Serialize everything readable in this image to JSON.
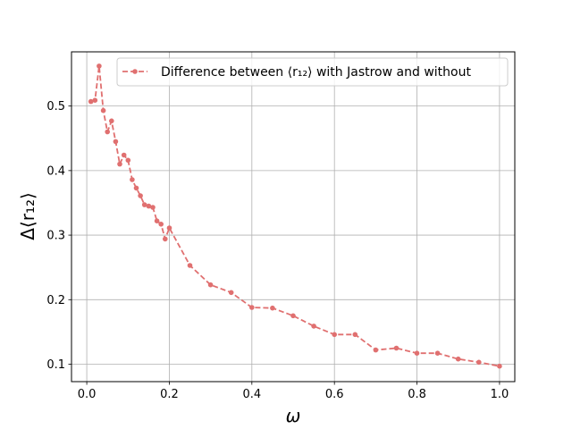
{
  "chart_data": {
    "type": "line",
    "xlabel": "ω",
    "ylabel": "Δ⟨r₁₂⟩",
    "xlim": [
      -0.037,
      1.037
    ],
    "ylim": [
      0.073,
      0.584
    ],
    "x_ticks": [
      0.0,
      0.2,
      0.4,
      0.6,
      0.8,
      1.0
    ],
    "x_tick_labels": [
      "0.0",
      "0.2",
      "0.4",
      "0.6",
      "0.8",
      "1.0"
    ],
    "y_ticks": [
      0.1,
      0.2,
      0.3,
      0.4,
      0.5
    ],
    "y_tick_labels": [
      "0.1",
      "0.2",
      "0.3",
      "0.4",
      "0.5"
    ],
    "grid": true,
    "legend_position": "top-right",
    "series": [
      {
        "name": "Difference between ⟨r₁₂⟩ with Jastrow and without",
        "color": "#e07070",
        "line_style": "dashed",
        "marker": "circle",
        "x": [
          0.01,
          0.02,
          0.03,
          0.04,
          0.05,
          0.06,
          0.07,
          0.08,
          0.09,
          0.1,
          0.11,
          0.12,
          0.13,
          0.14,
          0.15,
          0.16,
          0.17,
          0.18,
          0.19,
          0.2,
          0.25,
          0.3,
          0.35,
          0.4,
          0.45,
          0.5,
          0.55,
          0.6,
          0.65,
          0.7,
          0.75,
          0.8,
          0.85,
          0.9,
          0.95,
          1.0
        ],
        "y": [
          0.507,
          0.509,
          0.562,
          0.493,
          0.46,
          0.477,
          0.445,
          0.41,
          0.424,
          0.416,
          0.386,
          0.373,
          0.361,
          0.347,
          0.345,
          0.343,
          0.322,
          0.317,
          0.294,
          0.311,
          0.253,
          0.223,
          0.211,
          0.188,
          0.187,
          0.175,
          0.159,
          0.146,
          0.146,
          0.122,
          0.125,
          0.117,
          0.117,
          0.108,
          0.103,
          0.097
        ]
      }
    ]
  }
}
